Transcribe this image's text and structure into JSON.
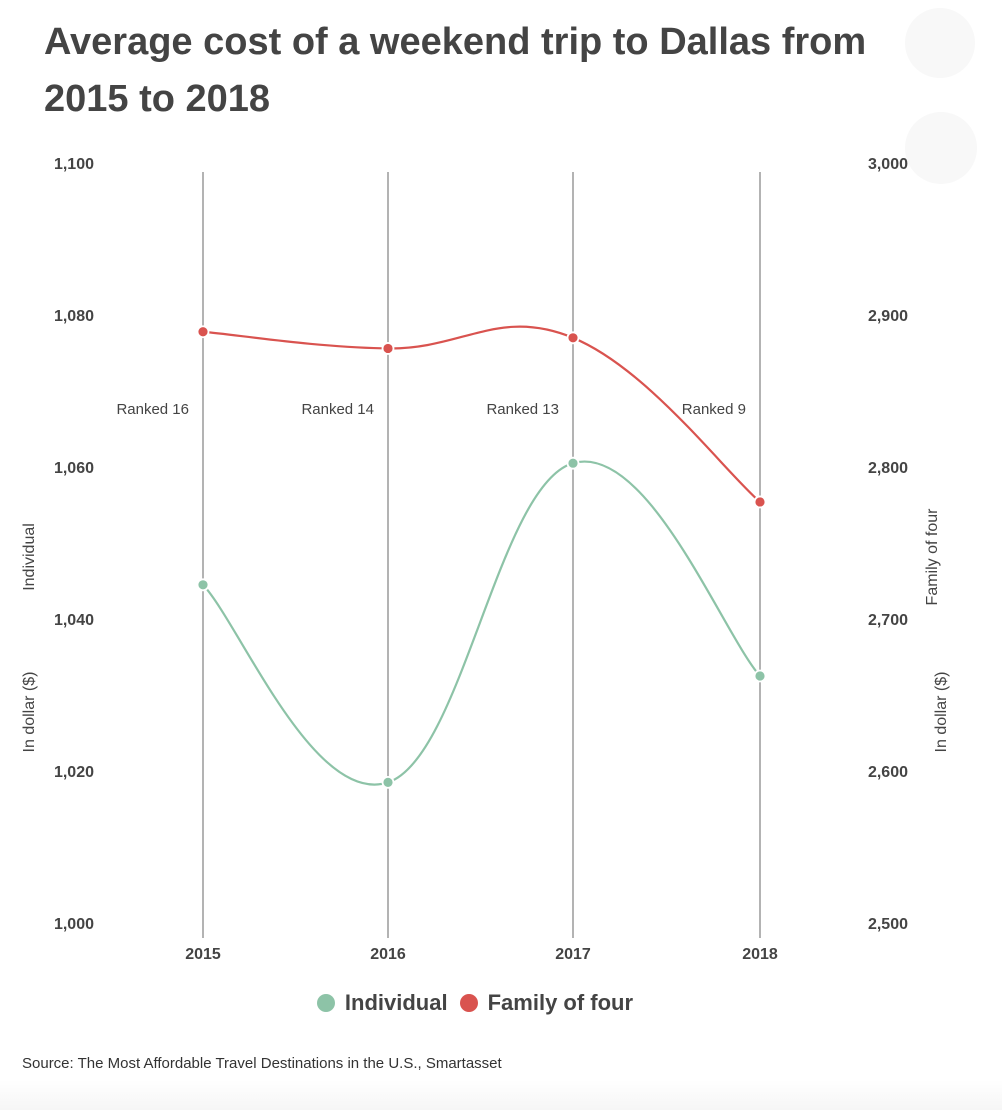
{
  "title": "Average cost of a weekend trip to Dallas from 2015 to 2018",
  "source": "Source: The Most Affordable Travel Destinations in the U.S., Smartasset",
  "legend": [
    {
      "label": "Individual",
      "color": "#8dc3a7"
    },
    {
      "label": "Family of four",
      "color": "#d9534f"
    }
  ],
  "chart_data": {
    "type": "line",
    "x": [
      "2015",
      "2016",
      "2017",
      "2018"
    ],
    "series": [
      {
        "name": "Individual",
        "axis": "left",
        "color": "#8dc3a7",
        "values": [
          1044.5,
          1018.5,
          1060.5,
          1032.5
        ]
      },
      {
        "name": "Family of four",
        "axis": "right",
        "color": "#d9534f",
        "values": [
          2889,
          2878,
          2885,
          2777
        ]
      }
    ],
    "y_left": {
      "label": "Individual",
      "unit_label": "In dollar ($)",
      "range": [
        1000,
        1100
      ],
      "ticks": [
        "1,000",
        "1,020",
        "1,040",
        "1,060",
        "1,080",
        "1,100"
      ]
    },
    "y_right": {
      "label": "Family of four",
      "unit_label": "In dollar ($)",
      "range": [
        2500,
        3000
      ],
      "ticks": [
        "2,500",
        "2,600",
        "2,700",
        "2,800",
        "2,900",
        "3,000"
      ]
    },
    "annotations": [
      "Ranked 16",
      "Ranked 14",
      "Ranked 13",
      "Ranked 9"
    ],
    "grid": "vertical lines at each year",
    "legend_position": "bottom-center",
    "curve": "smooth"
  }
}
